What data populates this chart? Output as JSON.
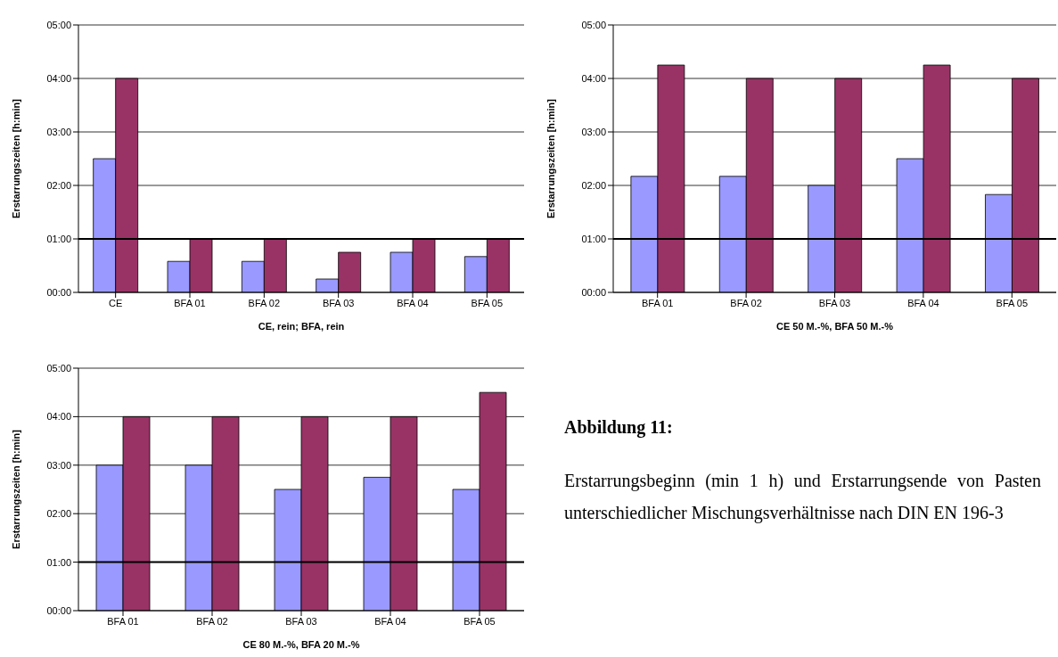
{
  "chart_data": [
    {
      "type": "bar",
      "xlabel": "CE, rein; BFA, rein",
      "ylabel": "Erstarrungszeiten [h:min]",
      "categories": [
        "CE",
        "BFA 01",
        "BFA 02",
        "BFA 03",
        "BFA 04",
        "BFA 05"
      ],
      "series": [
        {
          "color": "#9999ff",
          "values": [
            2.5,
            0.58,
            0.58,
            0.25,
            0.75,
            0.67
          ]
        },
        {
          "color": "#993366",
          "values": [
            4,
            1,
            1,
            0.75,
            1,
            1
          ]
        }
      ],
      "ylim": [
        0,
        5
      ],
      "yticks": [
        {
          "value": 0,
          "label": "00:00"
        },
        {
          "value": 1,
          "label": "01:00"
        },
        {
          "value": 2,
          "label": "02:00"
        },
        {
          "value": 3,
          "label": "03:00"
        },
        {
          "value": 4,
          "label": "04:00"
        },
        {
          "value": 5,
          "label": "05:00"
        }
      ],
      "grid": "y",
      "ref_lines": [
        {
          "axis": "y",
          "value": 1,
          "color": "#000000"
        }
      ]
    },
    {
      "type": "bar",
      "xlabel": "CE 50 M.-%, BFA 50 M.-%",
      "ylabel": "Erstarrungszeiten [h:min]",
      "categories": [
        "BFA 01",
        "BFA 02",
        "BFA 03",
        "BFA 04",
        "BFA 05"
      ],
      "series": [
        {
          "color": "#9999ff",
          "values": [
            2.17,
            2.17,
            2.0,
            2.5,
            1.83
          ]
        },
        {
          "color": "#993366",
          "values": [
            4.25,
            4,
            4,
            4.25,
            4
          ]
        }
      ],
      "ylim": [
        0,
        5
      ],
      "yticks": [
        {
          "value": 0,
          "label": "00:00"
        },
        {
          "value": 1,
          "label": "01:00"
        },
        {
          "value": 2,
          "label": "02:00"
        },
        {
          "value": 3,
          "label": "03:00"
        },
        {
          "value": 4,
          "label": "04:00"
        },
        {
          "value": 5,
          "label": "05:00"
        }
      ],
      "grid": "y",
      "ref_lines": [
        {
          "axis": "y",
          "value": 1,
          "color": "#000000"
        }
      ]
    },
    {
      "type": "bar",
      "xlabel": "CE 80 M.-%, BFA 20 M.-%",
      "ylabel": "Erstarrungszeiten [h:min]",
      "categories": [
        "BFA 01",
        "BFA 02",
        "BFA 03",
        "BFA 04",
        "BFA 05"
      ],
      "series": [
        {
          "color": "#9999ff",
          "values": [
            3,
            3,
            2.5,
            2.75,
            2.5
          ]
        },
        {
          "color": "#993366",
          "values": [
            4,
            4,
            4,
            4,
            4.5
          ]
        }
      ],
      "ylim": [
        0,
        5
      ],
      "yticks": [
        {
          "value": 0,
          "label": "00:00"
        },
        {
          "value": 1,
          "label": "01:00"
        },
        {
          "value": 2,
          "label": "02:00"
        },
        {
          "value": 3,
          "label": "03:00"
        },
        {
          "value": 4,
          "label": "04:00"
        },
        {
          "value": 5,
          "label": "05:00"
        }
      ],
      "grid": "y",
      "ref_lines": [
        {
          "axis": "y",
          "value": 1,
          "color": "#000000"
        }
      ]
    },
    {
      "type": "other",
      "title": "Abbildung 11:",
      "annotations": [
        "Erstarrungsbeginn (min 1 h) und Erstarrungsende von Pasten unterschiedlicher Mischungsverhältnisse nach DIN EN 196-3"
      ]
    }
  ]
}
